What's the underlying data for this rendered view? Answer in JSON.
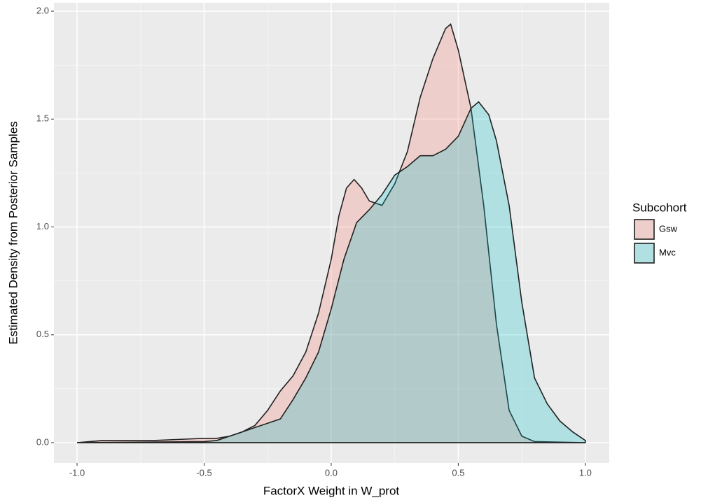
{
  "chart_data": {
    "type": "area",
    "x_label": "FactorX Weight in W_prot",
    "y_label": "Estimated Density from Posterior Samples",
    "legend_title": "Subcohort",
    "xlim": [
      -1.091,
      1.094
    ],
    "ylim": [
      -0.094,
      2.039
    ],
    "xticks": [
      {
        "value": -1.0,
        "label": "-1.0"
      },
      -0.5,
      {
        "value": 0,
        "label": "0.0"
      },
      0.5,
      {
        "value": 1.0,
        "label": "1.0"
      }
    ],
    "yticks": [
      {
        "value": 0,
        "label": "0.0"
      },
      0.5,
      {
        "value": 1.0,
        "label": "1.0"
      },
      1.5,
      {
        "value": 2.0,
        "label": "2.0"
      }
    ],
    "grid": true,
    "legend_position": "right",
    "series": [
      {
        "name": "Gsw",
        "color": "#F8766D",
        "x": [
          -1.0,
          -0.9,
          -0.8,
          -0.7,
          -0.6,
          -0.5,
          -0.45,
          -0.4,
          -0.35,
          -0.3,
          -0.25,
          -0.2,
          -0.15,
          -0.1,
          -0.05,
          0,
          0.03,
          0.06,
          0.09,
          0.12,
          0.15,
          0.2,
          0.25,
          0.3,
          0.35,
          0.4,
          0.45,
          0.47,
          0.5,
          0.55,
          0.6,
          0.65,
          0.7,
          0.75,
          0.8,
          1.0
        ],
        "values": [
          0,
          0.01,
          0.01,
          0.01,
          0.015,
          0.02,
          0.02,
          0.03,
          0.05,
          0.08,
          0.15,
          0.24,
          0.31,
          0.42,
          0.6,
          0.85,
          1.05,
          1.18,
          1.22,
          1.18,
          1.12,
          1.1,
          1.2,
          1.35,
          1.6,
          1.78,
          1.92,
          1.94,
          1.82,
          1.55,
          1.1,
          0.55,
          0.15,
          0.03,
          0.005,
          0
        ]
      },
      {
        "name": "Mvc",
        "color": "#00BFC4",
        "x": [
          -1.0,
          -0.5,
          -0.45,
          -0.4,
          -0.35,
          -0.3,
          -0.25,
          -0.2,
          -0.15,
          -0.1,
          -0.05,
          0,
          0.05,
          0.1,
          0.15,
          0.2,
          0.25,
          0.3,
          0.35,
          0.4,
          0.45,
          0.5,
          0.55,
          0.58,
          0.62,
          0.65,
          0.7,
          0.75,
          0.8,
          0.85,
          0.9,
          0.95,
          1.0
        ],
        "values": [
          0,
          0.005,
          0.01,
          0.03,
          0.05,
          0.07,
          0.09,
          0.11,
          0.2,
          0.3,
          0.42,
          0.62,
          0.85,
          1.02,
          1.08,
          1.15,
          1.24,
          1.28,
          1.33,
          1.33,
          1.36,
          1.42,
          1.55,
          1.58,
          1.52,
          1.4,
          1.1,
          0.65,
          0.3,
          0.18,
          0.1,
          0.05,
          0.01
        ]
      }
    ]
  }
}
